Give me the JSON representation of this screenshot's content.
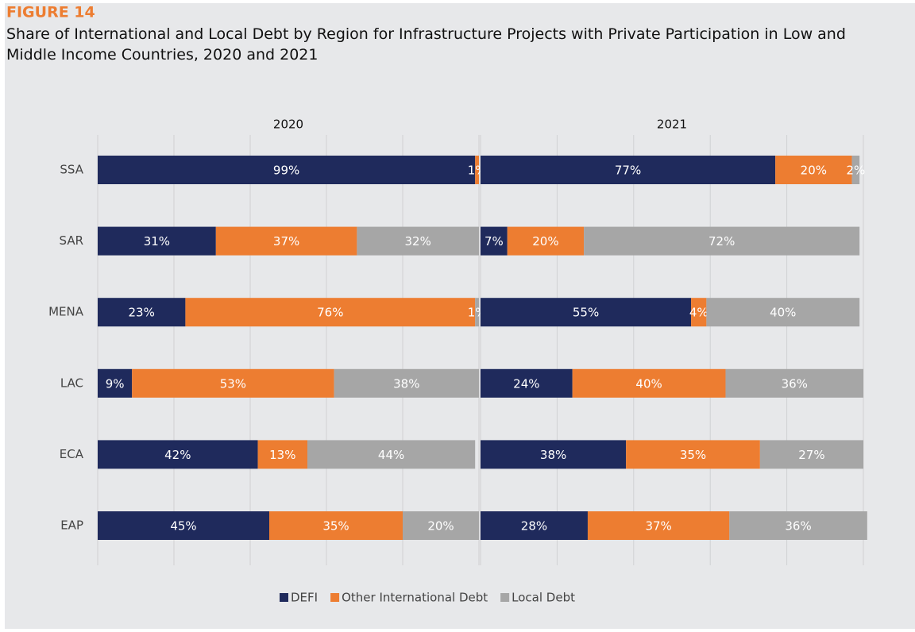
{
  "figure_label": "FIGURE 14",
  "title": "Share of International and Local Debt by Region for Infrastructure Projects with Private Participation in Low and Middle Income Countries, 2020 and 2021",
  "chart_data": [
    {
      "type": "stacked_bar_h",
      "title": "2020",
      "categories": [
        "SSA",
        "SAR",
        "MENA",
        "LAC",
        "ECA",
        "EAP"
      ],
      "xlim": [
        0,
        100
      ],
      "xticks": [
        0,
        20,
        40,
        60,
        80,
        100
      ],
      "grid": true,
      "series": [
        {
          "name": "DEFI",
          "color": "#1f2a5c",
          "values": [
            99,
            31,
            23,
            9,
            42,
            45
          ],
          "value_labels": [
            "99%",
            "31%",
            "23%",
            "9%",
            "42%",
            "45%"
          ]
        },
        {
          "name": "Other International Debt",
          "color": "#ed7d31",
          "values": [
            1,
            37,
            76,
            53,
            13,
            35
          ],
          "value_labels": [
            "1%",
            "37%",
            "76%",
            "53%",
            "13%",
            "35%"
          ]
        },
        {
          "name": "Local Debt",
          "color": "#a6a6a6",
          "values": [
            null,
            32,
            1,
            38,
            44,
            20
          ],
          "value_labels": [
            null,
            "32%",
            "1%",
            "38%",
            "44%",
            "20%"
          ]
        }
      ]
    },
    {
      "type": "stacked_bar_h",
      "title": "2021",
      "categories": [
        "SSA",
        "SAR",
        "MENA",
        "LAC",
        "ECA",
        "EAP"
      ],
      "xlim": [
        0,
        100
      ],
      "xticks": [
        0,
        20,
        40,
        60,
        80,
        100
      ],
      "grid": true,
      "series": [
        {
          "name": "DEFI",
          "color": "#1f2a5c",
          "values": [
            77,
            7,
            55,
            24,
            38,
            28
          ],
          "value_labels": [
            "77%",
            "7%",
            "55%",
            "24%",
            "38%",
            "28%"
          ]
        },
        {
          "name": "Other International Debt",
          "color": "#ed7d31",
          "values": [
            20,
            20,
            4,
            40,
            35,
            37
          ],
          "value_labels": [
            "20%",
            "20%",
            "4%",
            "40%",
            "35%",
            "37%"
          ]
        },
        {
          "name": "Local Debt",
          "color": "#a6a6a6",
          "values": [
            2,
            72,
            40,
            36,
            27,
            36
          ],
          "value_labels": [
            "2%",
            "72%",
            "40%",
            "36%",
            "27%",
            "36%"
          ]
        }
      ]
    }
  ]
}
